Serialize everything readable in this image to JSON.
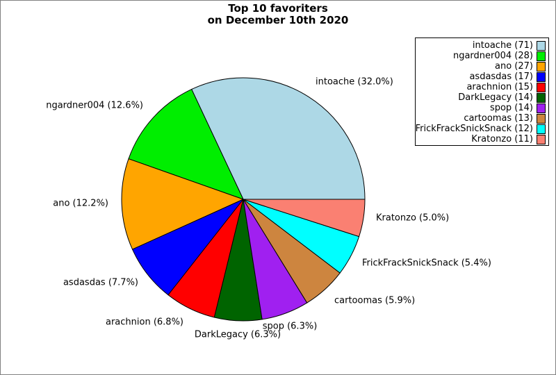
{
  "title": {
    "line1": "Top 10 favoriters",
    "line2": "on December 10th 2020"
  },
  "chart_data": {
    "type": "pie",
    "title": "Top 10 favoriters on December 10th 2020",
    "total": 222,
    "start_angle_deg": 0,
    "direction": "counterclockwise",
    "legend_position": "upper right",
    "series": [
      {
        "name": "intoache",
        "value": 71,
        "percent": 32.0,
        "slice_label": "intoache (32.0%)",
        "legend_text": "intoache (71)",
        "color": "#ADD8E6"
      },
      {
        "name": "ngardner004",
        "value": 28,
        "percent": 12.6,
        "slice_label": "ngardner004 (12.6%)",
        "legend_text": "ngardner004 (28)",
        "color": "#00EE00"
      },
      {
        "name": "ano",
        "value": 27,
        "percent": 12.2,
        "slice_label": "ano (12.2%)",
        "legend_text": "ano (27)",
        "color": "#FFA500"
      },
      {
        "name": "asdasdas",
        "value": 17,
        "percent": 7.7,
        "slice_label": "asdasdas (7.7%)",
        "legend_text": "asdasdas (17)",
        "color": "#0000FF"
      },
      {
        "name": "arachnion",
        "value": 15,
        "percent": 6.8,
        "slice_label": "arachnion (6.8%)",
        "legend_text": "arachnion (15)",
        "color": "#FF0000"
      },
      {
        "name": "DarkLegacy",
        "value": 14,
        "percent": 6.3,
        "slice_label": "DarkLegacy (6.3%)",
        "legend_text": "DarkLegacy (14)",
        "color": "#006400"
      },
      {
        "name": "spop",
        "value": 14,
        "percent": 6.3,
        "slice_label": "spop (6.3%)",
        "legend_text": "spop (14)",
        "color": "#A020F0"
      },
      {
        "name": "cartoomas",
        "value": 13,
        "percent": 5.9,
        "slice_label": "cartoomas (5.9%)",
        "legend_text": "cartoomas (13)",
        "color": "#CD853F"
      },
      {
        "name": "FrickFrackSnickSnack",
        "value": 12,
        "percent": 5.4,
        "slice_label": "FrickFrackSnickSnack (5.4%)",
        "legend_text": "FrickFrackSnickSnack (12)",
        "color": "#00FFFF"
      },
      {
        "name": "Kratonzo",
        "value": 11,
        "percent": 5.0,
        "slice_label": "Kratonzo (5.0%)",
        "legend_text": "Kratonzo (11)",
        "color": "#FA8072"
      }
    ]
  }
}
